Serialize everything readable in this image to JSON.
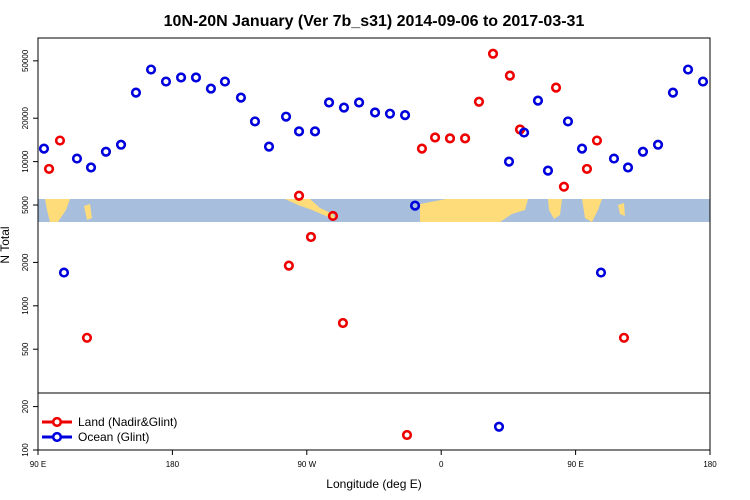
{
  "chart_data": {
    "type": "scatter",
    "title": "10N-20N January (Ver 7b_s31)   2014-09-06 to 2017-03-31",
    "xlabel": "Longitude (deg E)",
    "ylabel": "N Total",
    "log_y": true,
    "legend": "lower left",
    "xlim": [
      90,
      540
    ],
    "xticks": [
      {
        "value": 90,
        "label": "90 E"
      },
      180,
      {
        "value": 270,
        "label": "90 W"
      },
      {
        "value": 360,
        "label": "0"
      },
      {
        "value": 450,
        "label": "90 E"
      },
      {
        "value": 540,
        "label": "180"
      }
    ],
    "ylim": [
      100,
      72000
    ],
    "yticks": [
      100,
      200,
      500,
      1000,
      2000,
      5000,
      10000,
      20000,
      50000
    ],
    "series": [
      {
        "name": "Land (Nadir&Glint)",
        "color": "#ee0000",
        "x": [
          97.4,
          104.7,
          122.8,
          258,
          264.8,
          272.8,
          287.5,
          294.2,
          337.1,
          347.1,
          355.9,
          365.9,
          376,
          385.3,
          394.7,
          406,
          412.8,
          436.9,
          442.2,
          457.6,
          464.3,
          482.4
        ],
        "values": [
          8900,
          14000,
          600,
          1900,
          5800,
          3000,
          4200,
          760,
          127,
          12300,
          14700,
          14500,
          14500,
          26000,
          56000,
          39500,
          16700,
          32600,
          6700,
          8900,
          14000,
          600
        ]
      },
      {
        "name": "Ocean (Glint)",
        "color": "#0000dd",
        "x": [
          94,
          107.4,
          116.1,
          125.5,
          135.5,
          145.6,
          155.6,
          165.7,
          175.7,
          185.8,
          195.8,
          205.8,
          215.2,
          225.9,
          235.3,
          244.7,
          256.1,
          264.8,
          275.5,
          284.9,
          294.9,
          305,
          315.7,
          325.7,
          335.8,
          342.5,
          398.7,
          405.4,
          415.5,
          424.8,
          431.5,
          444.9,
          454.3,
          467,
          475.7,
          485.1,
          495.1,
          505.2,
          515.2,
          525.3,
          535.3
        ],
        "values": [
          12300,
          1700,
          10500,
          9100,
          11700,
          13100,
          30100,
          43500,
          35900,
          38300,
          38300,
          32100,
          35900,
          27800,
          19000,
          12700,
          20500,
          16200,
          16200,
          25700,
          23700,
          25700,
          21900,
          21500,
          21000,
          4950,
          145,
          10000,
          15900,
          26500,
          8660,
          19000,
          12300,
          1700,
          10500,
          9100,
          11700,
          13100,
          30100,
          43500,
          35900
        ]
      }
    ]
  }
}
